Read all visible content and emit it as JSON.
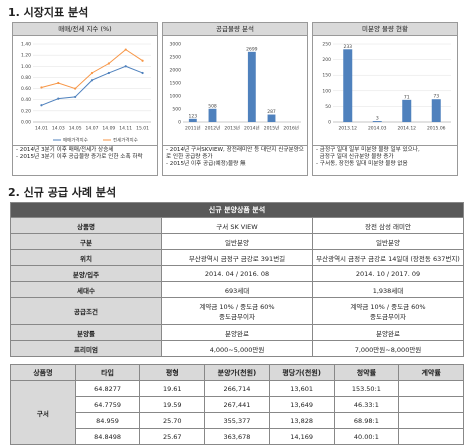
{
  "section1": {
    "heading": "1. 시장지표 분석"
  },
  "chart_data": [
    {
      "type": "line",
      "title": "매매/전세 지수 (%)",
      "categories": [
        "14.01",
        "14.03",
        "14.05",
        "14.07",
        "14.09",
        "14.11",
        "15.01"
      ],
      "series": [
        {
          "name": "매매가격지수",
          "color": "#4f81bd",
          "values": [
            0.3,
            0.42,
            0.45,
            0.75,
            0.88,
            1.0,
            0.88
          ]
        },
        {
          "name": "전세가격지수",
          "color": "#f79646",
          "values": [
            0.62,
            0.7,
            0.6,
            0.88,
            1.05,
            1.3,
            1.1
          ]
        }
      ],
      "ylim": [
        0,
        1.4
      ],
      "yticks": [
        {
          "value": 0,
          "label": "0.00"
        },
        {
          "value": 0.2,
          "label": "0.20"
        },
        {
          "value": 0.4,
          "label": "0.40"
        },
        {
          "value": 0.6,
          "label": "0.60"
        },
        {
          "value": 0.8,
          "label": "0.80"
        },
        {
          "value": 1,
          "label": "1.00"
        },
        {
          "value": 1.2,
          "label": "1.20"
        },
        {
          "value": 1.4,
          "label": "1.40"
        }
      ],
      "grid": true,
      "notes": [
        "- 2014년 3분기 이후 매매/전세가 상승세",
        "- 2015년 3분기 이후 공급물량 증가로 인한 소폭 하락"
      ]
    },
    {
      "type": "bar",
      "title": "공급물량 분석",
      "categories": [
        "2011년",
        "2012년",
        "2013년",
        "2014년",
        "2015년",
        "2016년"
      ],
      "values": [
        123,
        508,
        null,
        2699,
        287,
        null
      ],
      "color": "#4f81bd",
      "ylim": [
        0,
        3000
      ],
      "yticks": [
        0,
        500,
        1000,
        1500,
        2000,
        2500,
        3000
      ],
      "grid": false,
      "notes": [
        "- 2014년 구서SKVIEW, 장전래미안 등 대단지 신규분양으로 인한 공급량 증가",
        "- 2015년 이후 공급(예정)물량 無"
      ]
    },
    {
      "type": "bar",
      "title": "미분양 물량 현황",
      "categories": [
        "2013.12",
        "2014.03",
        "2014.12",
        "2015.06"
      ],
      "values": [
        233,
        3,
        71,
        73
      ],
      "color": "#4f81bd",
      "ylim": [
        0,
        250
      ],
      "yticks": [
        0,
        50,
        100,
        150,
        200,
        250
      ],
      "grid": true,
      "notes": [
        "- 금정구 일대 일부 미분양 물량 일부 있으나,",
        "  금정구 일대 신규분양 물량 증가",
        "- 구서동, 장전동 일대 미분양 물량 없음"
      ]
    }
  ],
  "section2": {
    "heading": "2. 신규 공급 사례 분석",
    "table": {
      "title": "신규 분양상품 분석",
      "rows": [
        [
          "상품명",
          "구서 SK VIEW",
          "장전 삼성 래미안"
        ],
        [
          "구분",
          "일반분양",
          "일반분양"
        ],
        [
          "위치",
          "부산광역시 금정구 금강로 391번길",
          "부산광역시 금정구 금강로 14일대 (장전동 637번지)"
        ],
        [
          "분양/입주",
          "2014. 04 / 2016. 08",
          "2014. 10 / 2017. 09"
        ],
        [
          "세대수",
          "693세대",
          "1,938세대"
        ],
        [
          "공급조건",
          [
            "계약금 10% / 중도금 60%",
            "중도금무이자"
          ],
          [
            "계약금 10% / 중도금 60%",
            "중도금무이자"
          ]
        ],
        [
          "분양률",
          "분양완료",
          "분양완료"
        ],
        [
          "프리미엄",
          "4,000~5,000만원",
          "7,000만원~8,000만원"
        ]
      ]
    },
    "table2": {
      "header": [
        "상품명",
        "타입",
        "평형",
        "분양가(천원)",
        "평당가(천원)",
        "청약률",
        "계약률"
      ],
      "group": "구서",
      "rows": [
        [
          "64.8277",
          "19.61",
          "266,714",
          "13,601",
          "153.50:1"
        ],
        [
          "64.7759",
          "19.59",
          "267,441",
          "13,649",
          "46.33:1"
        ],
        [
          "84.959",
          "25.70",
          "355,377",
          "13,828",
          "68.98:1"
        ],
        [
          "84.8498",
          "25.67",
          "363,678",
          "14,169",
          "40.00:1"
        ]
      ]
    }
  }
}
